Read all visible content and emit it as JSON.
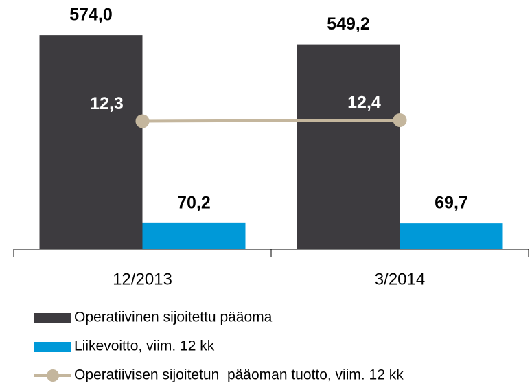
{
  "chart_data": {
    "type": "bar",
    "categories": [
      "12/2013",
      "3/2014"
    ],
    "ylim": [
      0,
      600
    ],
    "y2lim": [
      0,
      21.5
    ],
    "legend": "bottom",
    "series": [
      {
        "name": "Operatiivinen sijoitettu pääoma",
        "type": "bar",
        "color": "#3d3b3f",
        "values": [
          574.0,
          549.2
        ],
        "value_labels": [
          "574,0",
          "549,2"
        ]
      },
      {
        "name": "Liikevoitto, viim. 12 kk",
        "type": "bar",
        "color": "#0099d8",
        "values": [
          70.2,
          69.7
        ],
        "value_labels": [
          "70,2",
          "69,7"
        ]
      },
      {
        "name": "Operatiivisen sijoitetun  pääoman tuotto, viim. 12 kk",
        "type": "line",
        "axis": "y2",
        "color": "#c4b69d",
        "values": [
          12.3,
          12.4
        ],
        "value_labels": [
          "12,3",
          "12,4"
        ]
      }
    ]
  }
}
